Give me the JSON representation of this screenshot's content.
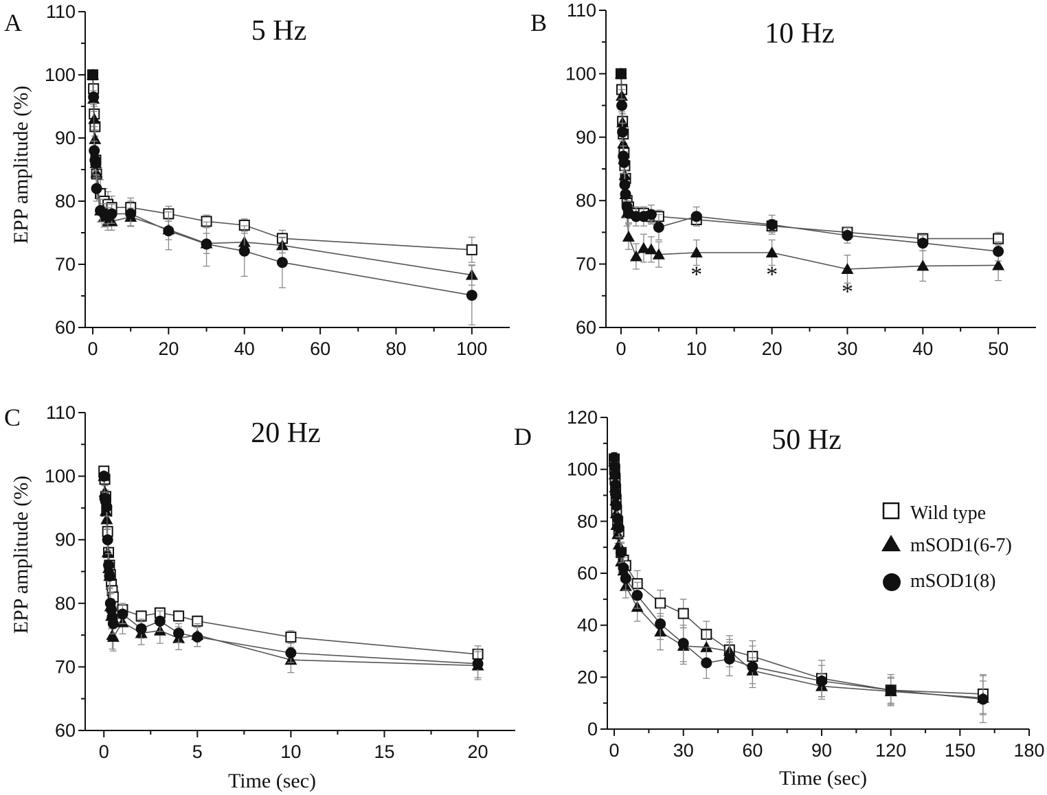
{
  "legend": {
    "items": [
      {
        "label": "Wild type",
        "marker": "square-open"
      },
      {
        "label": "mSOD1(6-7)",
        "marker": "triangle"
      },
      {
        "label": "mSOD1(8)",
        "marker": "circle"
      }
    ]
  },
  "axis_titles": {
    "ylabel": "EPP amplitude (%)",
    "xlabel": "Time (sec)"
  },
  "colors": {
    "ink": "#111111",
    "errorbar": "#888888",
    "line": "#555555",
    "background": "#ffffff"
  },
  "chart_data": [
    {
      "panel": "A",
      "type": "line",
      "title": "5 Hz",
      "xlabel": "",
      "ylabel": "EPP amplitude (%)",
      "xlim": [
        -2,
        110
      ],
      "ylim": [
        60,
        110
      ],
      "xticks": [
        0,
        20,
        40,
        60,
        80,
        100
      ],
      "yticks": [
        60,
        70,
        80,
        90,
        100,
        110
      ],
      "series": [
        {
          "name": "Wild type",
          "marker": "square-open",
          "x": [
            0,
            0.2,
            0.4,
            0.6,
            0.8,
            1,
            2,
            3,
            4,
            5,
            10,
            20,
            30,
            40,
            50,
            100
          ],
          "y": [
            100,
            97.8,
            93.8,
            91.8,
            86.5,
            84.3,
            81.2,
            80,
            79.5,
            79,
            79,
            78,
            76.8,
            76.2,
            74.1,
            72.3
          ],
          "err": [
            0.3,
            0.8,
            1.2,
            1.5,
            1.8,
            2,
            2.2,
            2,
            2,
            1.8,
            1.5,
            1.2,
            1,
            1,
            1.3,
            2
          ]
        },
        {
          "name": "mSOD1(6-7)",
          "marker": "triangle",
          "x": [
            0,
            0.2,
            0.4,
            0.6,
            0.8,
            1,
            2,
            3,
            4,
            5,
            10,
            20,
            30,
            40,
            50,
            100
          ],
          "y": [
            100,
            96.2,
            93,
            89.8,
            86,
            84.5,
            78.5,
            77.5,
            76.8,
            76.8,
            77.5,
            75.5,
            73.3,
            73.5,
            73,
            68.3
          ],
          "err": [
            0.3,
            0.9,
            1.2,
            1.5,
            1.7,
            1.9,
            1.8,
            1.6,
            1.4,
            1.4,
            1.4,
            1.6,
            1.6,
            1.4,
            1.2,
            1.6
          ]
        },
        {
          "name": "mSOD1(8)",
          "marker": "circle",
          "x": [
            0,
            0.2,
            0.4,
            0.6,
            0.8,
            1,
            2,
            3,
            4,
            5,
            10,
            20,
            30,
            40,
            50,
            100
          ],
          "y": [
            100,
            96.5,
            88,
            86.5,
            86,
            82,
            78.5,
            78,
            77.5,
            78,
            78,
            75.3,
            73.2,
            72.1,
            70.3,
            65.1
          ],
          "err": [
            0.3,
            1,
            1.5,
            1.7,
            1.8,
            2,
            1.8,
            1.6,
            1.5,
            1.5,
            2,
            3,
            3.5,
            4,
            4,
            4.7
          ]
        }
      ]
    },
    {
      "panel": "B",
      "type": "line",
      "title": "10 Hz",
      "xlabel": "",
      "ylabel": "EPP amplitude (%)",
      "xlim": [
        -2,
        55
      ],
      "ylim": [
        60,
        110
      ],
      "xticks": [
        0,
        10,
        20,
        30,
        40,
        50
      ],
      "yticks": [
        60,
        70,
        80,
        90,
        100,
        110
      ],
      "annotations": [
        {
          "text": "*",
          "x": 10,
          "y": 68.5
        },
        {
          "text": "*",
          "x": 20,
          "y": 68.5
        },
        {
          "text": "*",
          "x": 30,
          "y": 65.8
        }
      ],
      "series": [
        {
          "name": "Wild type",
          "marker": "square-open",
          "x": [
            0,
            0.1,
            0.2,
            0.3,
            0.4,
            0.5,
            0.6,
            0.8,
            1,
            2,
            3,
            4,
            5,
            10,
            20,
            30,
            40,
            50
          ],
          "y": [
            100,
            97.5,
            92.5,
            90.5,
            87.5,
            85.5,
            83.5,
            80,
            79,
            78,
            78,
            77.5,
            77.5,
            77,
            76,
            75,
            74,
            74
          ],
          "err": [
            0.3,
            0.8,
            1.2,
            1.4,
            1.5,
            1.5,
            1.5,
            1.3,
            1.2,
            1,
            1,
            1,
            1,
            1,
            1,
            0.8,
            0.8,
            1
          ]
        },
        {
          "name": "mSOD1(6-7)",
          "marker": "triangle",
          "x": [
            0,
            0.1,
            0.2,
            0.3,
            0.4,
            0.5,
            0.6,
            0.8,
            1,
            2,
            3,
            4,
            5,
            10,
            20,
            30,
            40,
            50
          ],
          "y": [
            100,
            96.5,
            92.3,
            89,
            86.5,
            84,
            81,
            78,
            74.3,
            71.2,
            72.5,
            72.3,
            71.5,
            71.8,
            71.8,
            69.2,
            69.7,
            69.8
          ],
          "err": [
            0.3,
            1,
            1.4,
            1.6,
            1.8,
            2,
            2,
            2,
            2,
            2,
            2.2,
            2,
            2,
            2,
            2,
            2.2,
            2.4,
            2.4
          ]
        },
        {
          "name": "mSOD1(8)",
          "marker": "circle",
          "x": [
            0,
            0.1,
            0.2,
            0.3,
            0.4,
            0.5,
            0.6,
            0.8,
            1,
            2,
            3,
            4,
            5,
            10,
            20,
            30,
            40,
            50
          ],
          "y": [
            100,
            95,
            90.8,
            87,
            86,
            82.5,
            81,
            79,
            78,
            77.5,
            77.5,
            77.8,
            75.8,
            77.5,
            76.2,
            74.5,
            73.3,
            72
          ],
          "err": [
            0.3,
            1,
            1.4,
            1.6,
            1.7,
            1.8,
            1.8,
            1.6,
            1.5,
            1.5,
            1.5,
            1.5,
            2,
            1.5,
            1.5,
            1.2,
            1.2,
            1.5
          ]
        }
      ]
    },
    {
      "panel": "C",
      "type": "line",
      "title": "20 Hz",
      "xlabel": "Time (sec)",
      "ylabel": "EPP amplitude (%)",
      "xlim": [
        -1,
        22
      ],
      "ylim": [
        60,
        110
      ],
      "xticks": [
        0,
        5,
        10,
        15,
        20
      ],
      "yticks": [
        60,
        70,
        80,
        90,
        100,
        110
      ],
      "series": [
        {
          "name": "Wild type",
          "marker": "square-open",
          "x": [
            0,
            0.05,
            0.1,
            0.15,
            0.2,
            0.25,
            0.3,
            0.35,
            0.4,
            0.45,
            0.5,
            1,
            2,
            3,
            4,
            5,
            10,
            20
          ],
          "y": [
            100.8,
            99.5,
            96.8,
            94.5,
            91.3,
            88,
            86,
            84.5,
            83,
            82,
            81,
            79,
            78,
            78.5,
            78,
            77.2,
            74.7,
            72
          ],
          "err": [
            0.5,
            0.8,
            1,
            1.2,
            1.4,
            1.5,
            1.6,
            1.6,
            1.5,
            1.5,
            1.5,
            1,
            0.8,
            0.8,
            0.8,
            0.8,
            1,
            1.3
          ]
        },
        {
          "name": "mSOD1(6-7)",
          "marker": "triangle",
          "x": [
            0,
            0.05,
            0.1,
            0.15,
            0.2,
            0.25,
            0.3,
            0.35,
            0.4,
            0.45,
            0.5,
            1,
            2,
            3,
            4,
            5,
            10,
            20
          ],
          "y": [
            100,
            97.5,
            94.5,
            93.2,
            88,
            85.5,
            84.3,
            79.5,
            78,
            75,
            74.7,
            77,
            75.3,
            75.7,
            74.5,
            75,
            71.1,
            70.2
          ],
          "err": [
            0.5,
            1,
            1.4,
            1.6,
            1.8,
            2,
            2,
            2,
            2,
            2.2,
            2.2,
            1.8,
            1.8,
            2,
            1.8,
            1.8,
            2,
            2.2
          ]
        },
        {
          "name": "mSOD1(8)",
          "marker": "circle",
          "x": [
            0,
            0.05,
            0.1,
            0.15,
            0.2,
            0.25,
            0.3,
            0.35,
            0.4,
            0.45,
            0.5,
            1,
            2,
            3,
            4,
            5,
            10,
            20
          ],
          "y": [
            100,
            96.5,
            96,
            95.2,
            90,
            86,
            84.3,
            80,
            79,
            77.8,
            76.8,
            78.3,
            76,
            77.2,
            75.3,
            74.7,
            72.2,
            70.5
          ],
          "err": [
            0.5,
            1,
            1.3,
            1.5,
            1.7,
            1.8,
            1.8,
            1.8,
            1.7,
            1.6,
            1.6,
            1.5,
            1.5,
            1.6,
            1.5,
            1.5,
            1.5,
            2.2
          ]
        }
      ]
    },
    {
      "panel": "D",
      "type": "line",
      "title": "50 Hz",
      "xlabel": "Time (sec)",
      "ylabel": "",
      "xlim": [
        -3,
        180
      ],
      "ylim": [
        0,
        120
      ],
      "xticks": [
        0,
        30,
        60,
        90,
        120,
        150,
        180
      ],
      "yticks": [
        0,
        20,
        40,
        60,
        80,
        100,
        120
      ],
      "series": [
        {
          "name": "Wild type",
          "marker": "square-open",
          "x": [
            0,
            0.2,
            0.4,
            0.6,
            0.8,
            1,
            1.5,
            2,
            3,
            4,
            5,
            10,
            20,
            30,
            40,
            50,
            60,
            90,
            120,
            160
          ],
          "y": [
            104,
            100,
            96,
            92,
            88,
            84,
            80,
            76,
            68,
            65,
            63,
            56,
            48.5,
            44.5,
            36.5,
            30.5,
            28,
            19.5,
            15,
            13.5
          ],
          "err": [
            1.5,
            2,
            2.5,
            2.5,
            3,
            3,
            3,
            3,
            3.5,
            4,
            4,
            5,
            5,
            5.5,
            5,
            4,
            6,
            7,
            6,
            7.5
          ]
        },
        {
          "name": "mSOD1(6-7)",
          "marker": "triangle",
          "x": [
            0,
            0.2,
            0.4,
            0.6,
            0.8,
            1,
            1.5,
            2,
            3,
            4,
            5,
            10,
            20,
            30,
            40,
            50,
            60,
            90,
            120,
            160
          ],
          "y": [
            103,
            98,
            93,
            88,
            83,
            78.5,
            75,
            71,
            64.5,
            61,
            55,
            47,
            37.5,
            32,
            31.5,
            30,
            22.5,
            16.5,
            14.5,
            12
          ],
          "err": [
            2,
            2.5,
            3,
            3,
            3.5,
            3.5,
            3.5,
            4,
            4,
            4,
            4.5,
            5.5,
            7,
            7,
            6.5,
            6,
            5,
            5,
            5,
            6.5
          ]
        },
        {
          "name": "mSOD1(8)",
          "marker": "circle",
          "x": [
            0,
            0.2,
            0.4,
            0.6,
            0.8,
            1,
            1.5,
            2,
            3,
            4,
            5,
            10,
            20,
            30,
            40,
            50,
            60,
            90,
            120,
            160
          ],
          "y": [
            104.5,
            101,
            98,
            94,
            90,
            86,
            81,
            77.5,
            68,
            62,
            58,
            51.5,
            40.5,
            33,
            25.5,
            27,
            24,
            18.5,
            15,
            11.5
          ],
          "err": [
            2,
            2.5,
            3,
            3,
            3,
            3.5,
            3.5,
            3.5,
            4,
            4,
            4.5,
            5,
            6,
            7,
            6,
            6.5,
            8,
            6,
            5,
            9
          ]
        }
      ]
    }
  ]
}
